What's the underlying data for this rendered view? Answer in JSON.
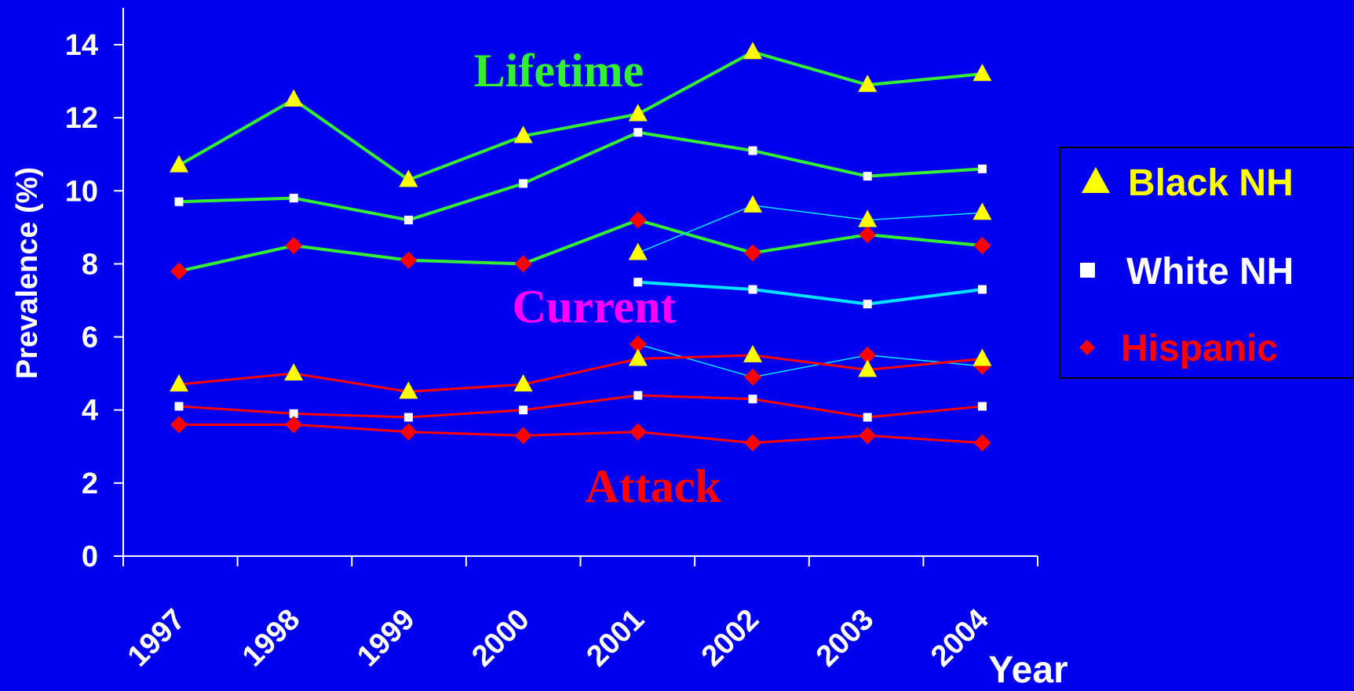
{
  "chart_data": {
    "type": "line",
    "xlabel": "Year",
    "ylabel": "Prevalence (%)",
    "ylim": [
      0,
      15
    ],
    "yticks": [
      "0",
      "2",
      "4",
      "6",
      "8",
      "10",
      "12",
      "14"
    ],
    "categories": [
      "1997",
      "1998",
      "1999",
      "2000",
      "2001",
      "2002",
      "2003",
      "2004"
    ],
    "annotations": [
      {
        "text": "Lifetime",
        "color": "#33EE33"
      },
      {
        "text": "Current",
        "color": "#FF00FF"
      },
      {
        "text": "Attack",
        "color": "#FF0000"
      }
    ],
    "legend": {
      "placement": "right",
      "entries": [
        {
          "name": "Black NH",
          "marker": "triangle",
          "color": "#FFFF00",
          "text_color": "#FFFF00"
        },
        {
          "name": "White NH",
          "marker": "square",
          "color": "#FFFFFF",
          "text_color": "#FFFFFF"
        },
        {
          "name": "Hispanic",
          "marker": "diamond",
          "color": "#FF0000",
          "text_color": "#FF0000"
        }
      ]
    },
    "groups": [
      {
        "name": "Lifetime",
        "line_color": "#33EE33",
        "line_width": 4,
        "series": [
          {
            "name": "Black NH",
            "marker": "triangle",
            "values": [
              10.7,
              12.5,
              10.3,
              11.5,
              12.1,
              13.8,
              12.9,
              13.2
            ]
          },
          {
            "name": "White NH",
            "marker": "square",
            "values": [
              9.7,
              9.8,
              9.2,
              10.2,
              11.6,
              11.1,
              10.4,
              10.6
            ]
          },
          {
            "name": "Hispanic",
            "marker": "diamond",
            "values": [
              7.8,
              8.5,
              8.1,
              8.0,
              9.2,
              8.3,
              8.8,
              8.5
            ]
          }
        ]
      },
      {
        "name": "Current",
        "line_color": "#00E5FF",
        "series": [
          {
            "name": "Black NH",
            "marker": "triangle",
            "line_width": 1.5,
            "values": [
              null,
              null,
              null,
              null,
              8.3,
              9.6,
              9.2,
              9.4
            ]
          },
          {
            "name": "White NH",
            "marker": "square",
            "line_width": 4,
            "values": [
              null,
              null,
              null,
              null,
              7.5,
              7.3,
              6.9,
              7.3
            ]
          },
          {
            "name": "Hispanic",
            "marker": "diamond",
            "line_width": 1.5,
            "values": [
              null,
              null,
              null,
              null,
              5.8,
              4.9,
              5.5,
              5.2
            ]
          }
        ]
      },
      {
        "name": "Attack",
        "line_color": "#FF0000",
        "line_width": 3,
        "series": [
          {
            "name": "Black NH",
            "marker": "triangle",
            "values": [
              4.7,
              5.0,
              4.5,
              4.7,
              5.4,
              5.5,
              5.1,
              5.4
            ]
          },
          {
            "name": "White NH",
            "marker": "square",
            "values": [
              4.1,
              3.9,
              3.8,
              4.0,
              4.4,
              4.3,
              3.8,
              4.1
            ]
          },
          {
            "name": "Hispanic",
            "marker": "diamond",
            "values": [
              3.6,
              3.6,
              3.4,
              3.3,
              3.4,
              3.1,
              3.3,
              3.1
            ]
          }
        ]
      }
    ],
    "marker_colors": {
      "triangle": "#FFFF00",
      "square": "#FFFFFF",
      "diamond": "#FF0000"
    }
  }
}
